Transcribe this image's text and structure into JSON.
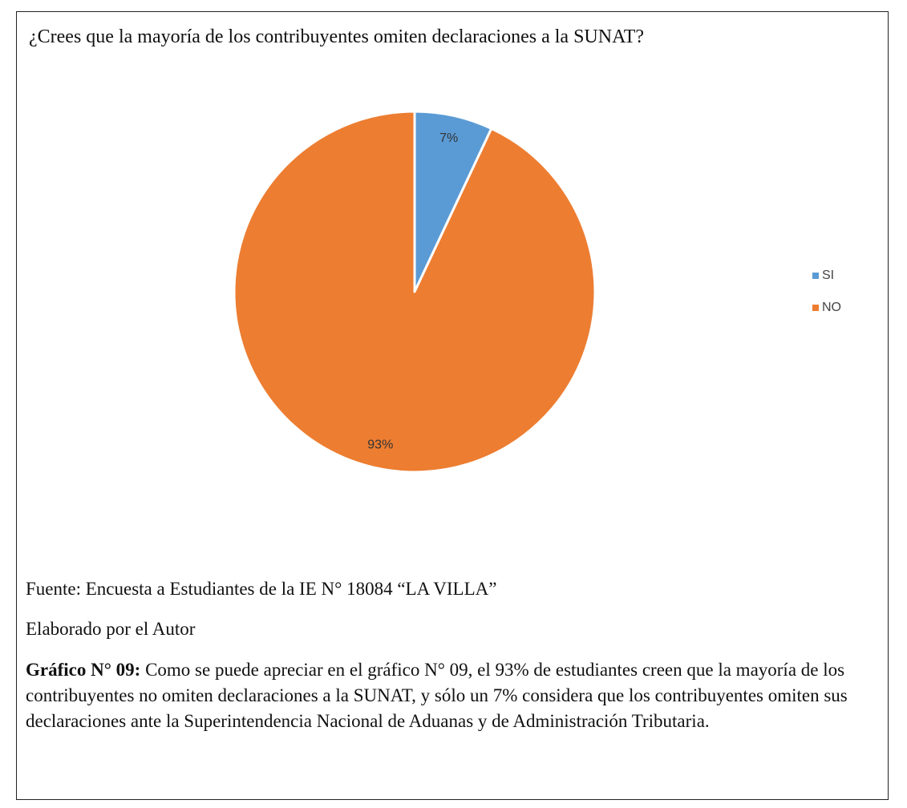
{
  "chart_data": {
    "type": "pie",
    "title": "¿Crees que la mayoría de los contribuyentes omiten declaraciones a la SUNAT?",
    "categories": [
      "SI",
      "NO"
    ],
    "values": [
      7,
      93
    ],
    "value_labels": [
      "7%",
      "93%"
    ],
    "colors": [
      "#5b9bd5",
      "#ed7d31"
    ],
    "legend": "right"
  },
  "document": {
    "source": "Fuente: Encuesta a Estudiantes de la IE N° 18084 “LA VILLA”",
    "author": "Elaborado por el Autor",
    "caption_label": "Gráfico N° 09:",
    "caption_text": "Como se puede apreciar en el gráfico N° 09, el 93% de estudiantes creen que la mayoría de los contribuyentes no omiten declaraciones a la SUNAT, y sólo un 7% considera que los contribuyentes omiten sus declaraciones ante la Superintendencia Nacional de Aduanas y de Administración Tributaria."
  }
}
